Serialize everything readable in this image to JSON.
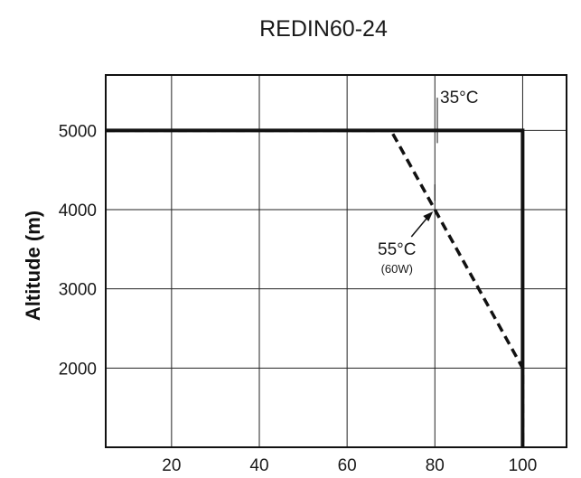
{
  "chart_data": {
    "type": "line",
    "title": "REDIN60-24",
    "xlabel": "",
    "ylabel": "Altitude (m)",
    "xlim": [
      5,
      110
    ],
    "ylim": [
      1000,
      5700
    ],
    "xticks": [
      20,
      40,
      60,
      80,
      100
    ],
    "yticks": [
      2000,
      3000,
      4000,
      5000
    ],
    "grid": true,
    "series": [
      {
        "name": "35°C",
        "style": "solid",
        "color": "#111111",
        "x": [
          5,
          100,
          100
        ],
        "y": [
          5000,
          5000,
          1000
        ]
      },
      {
        "name": "55°C",
        "style": "dashed",
        "color": "#111111",
        "x": [
          5,
          70,
          100,
          100
        ],
        "y": [
          5000,
          5000,
          2000,
          1000
        ]
      }
    ],
    "annotations": [
      {
        "text": "35°C",
        "x": 82,
        "y": 5300
      },
      {
        "text": "55°C",
        "subtext": "(60W)",
        "x": 80,
        "y": 4000
      }
    ]
  }
}
